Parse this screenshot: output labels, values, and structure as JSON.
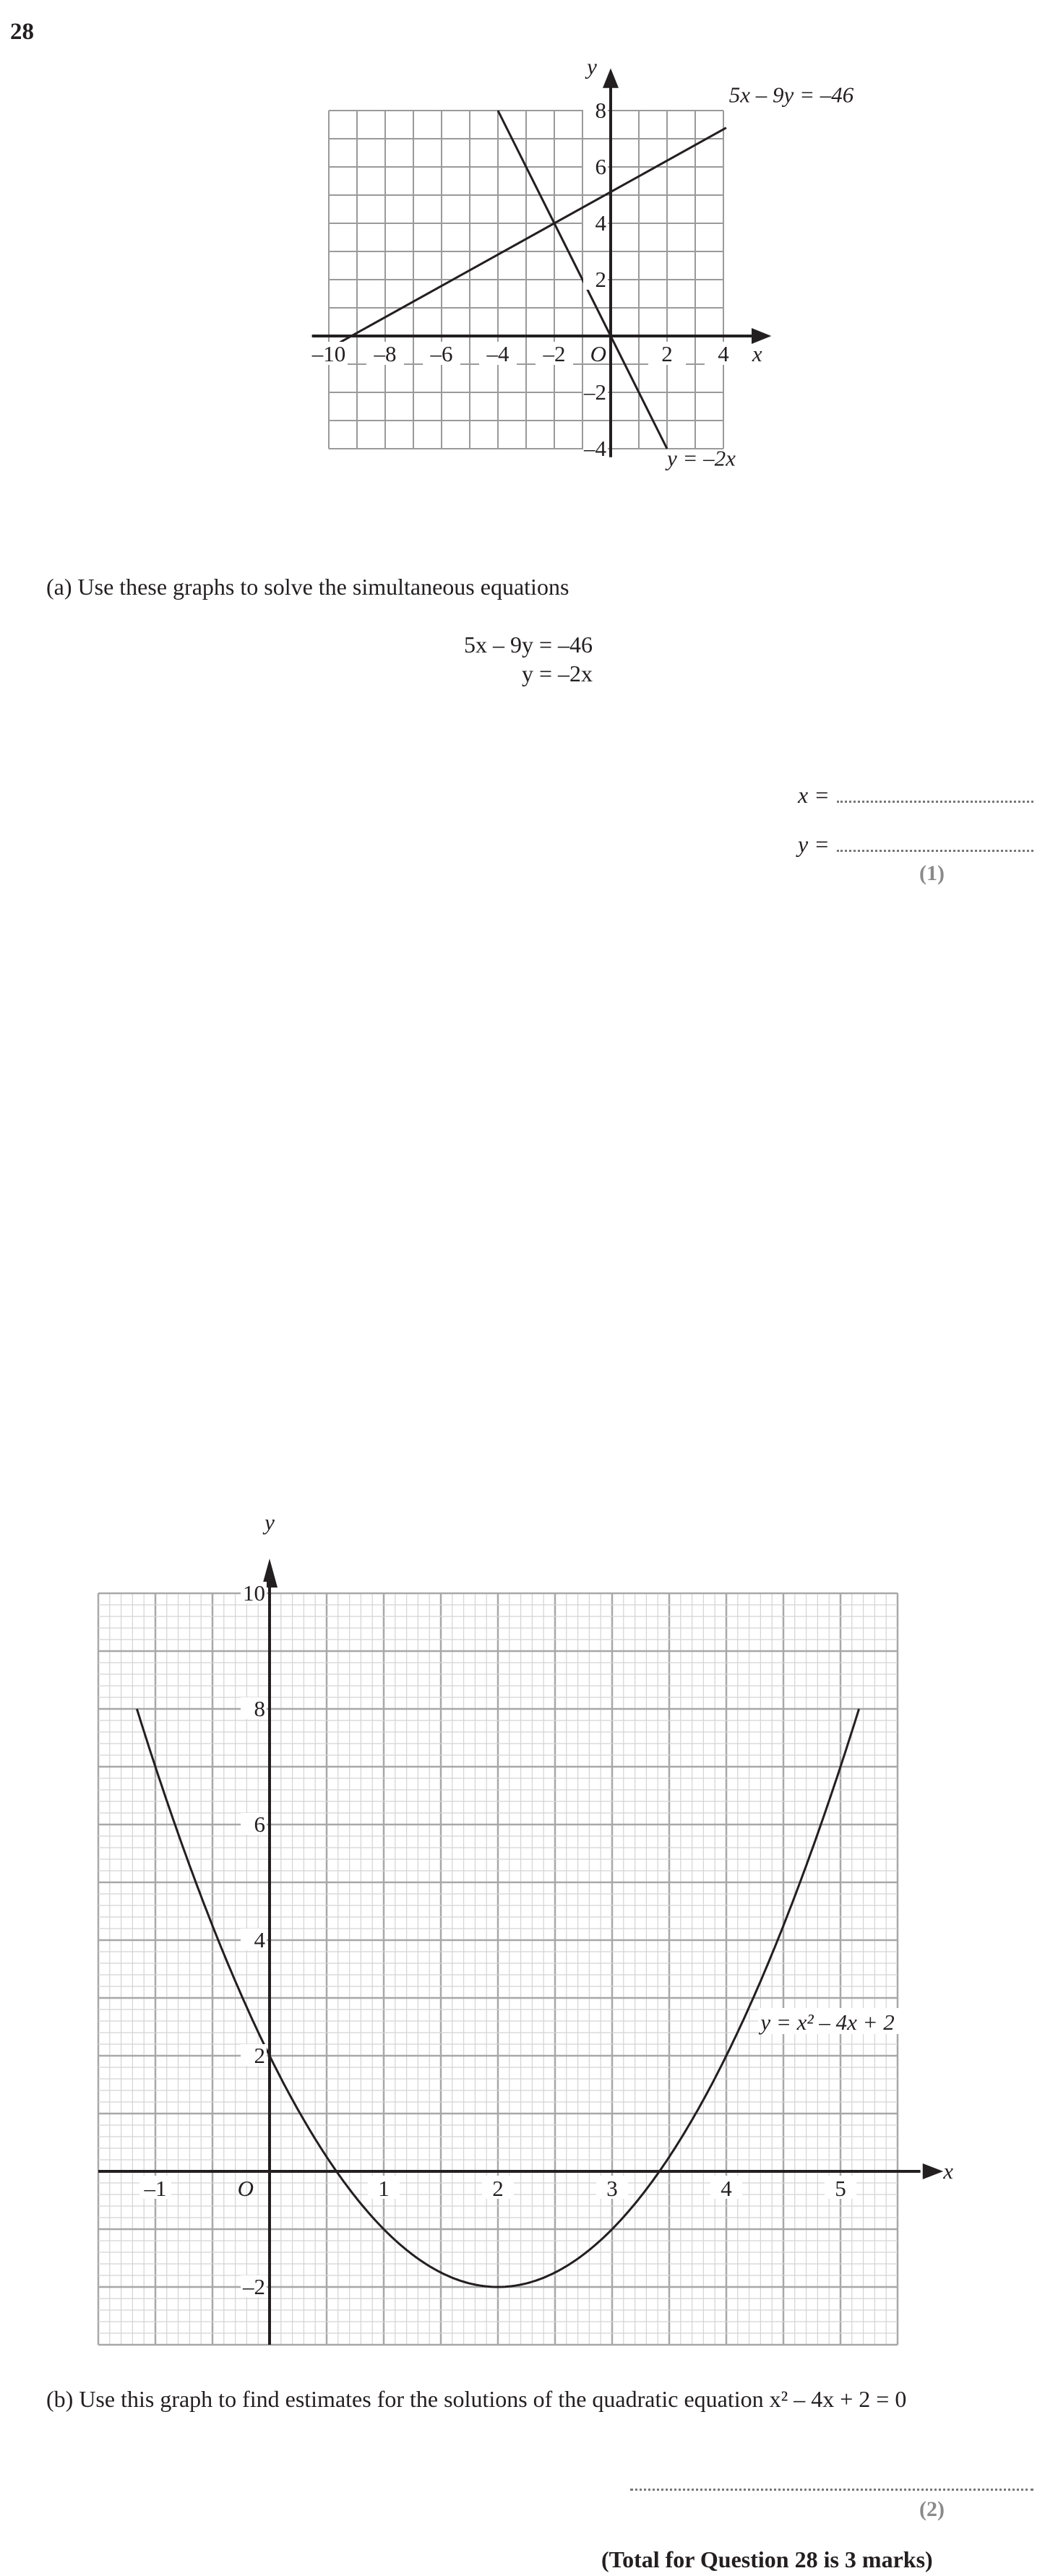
{
  "question_number": "28",
  "graph1": {
    "x_label": "x",
    "y_label": "y",
    "origin_label": "O",
    "x_ticks": [
      "–10",
      "–8",
      "–6",
      "–4",
      "–2",
      "2",
      "4"
    ],
    "y_ticks": [
      "8",
      "6",
      "4",
      "2",
      "–2",
      "–4"
    ],
    "line1_label": "5x – 9y = –46",
    "line2_label": "y = –2x"
  },
  "part_a": {
    "instruction": "(a)  Use these graphs to solve the simultaneous equations",
    "equation1": "5x – 9y = –46",
    "equation2": "y = –2x",
    "x_answer_label": "x =",
    "y_answer_label": "y =",
    "marks": "(1)"
  },
  "graph2": {
    "x_label": "x",
    "y_label": "y",
    "origin_label": "O",
    "x_ticks": [
      "–1",
      "1",
      "2",
      "3",
      "4",
      "5"
    ],
    "y_ticks": [
      "10",
      "8",
      "6",
      "4",
      "2",
      "–2"
    ],
    "curve_label": "y = x² – 4x + 2"
  },
  "part_b": {
    "instruction": "(b)  Use this graph to find estimates for the solutions of the quadratic equation x² – 4x + 2 = 0",
    "marks": "(2)"
  },
  "total": "(Total for Question 28 is 3 marks)"
}
